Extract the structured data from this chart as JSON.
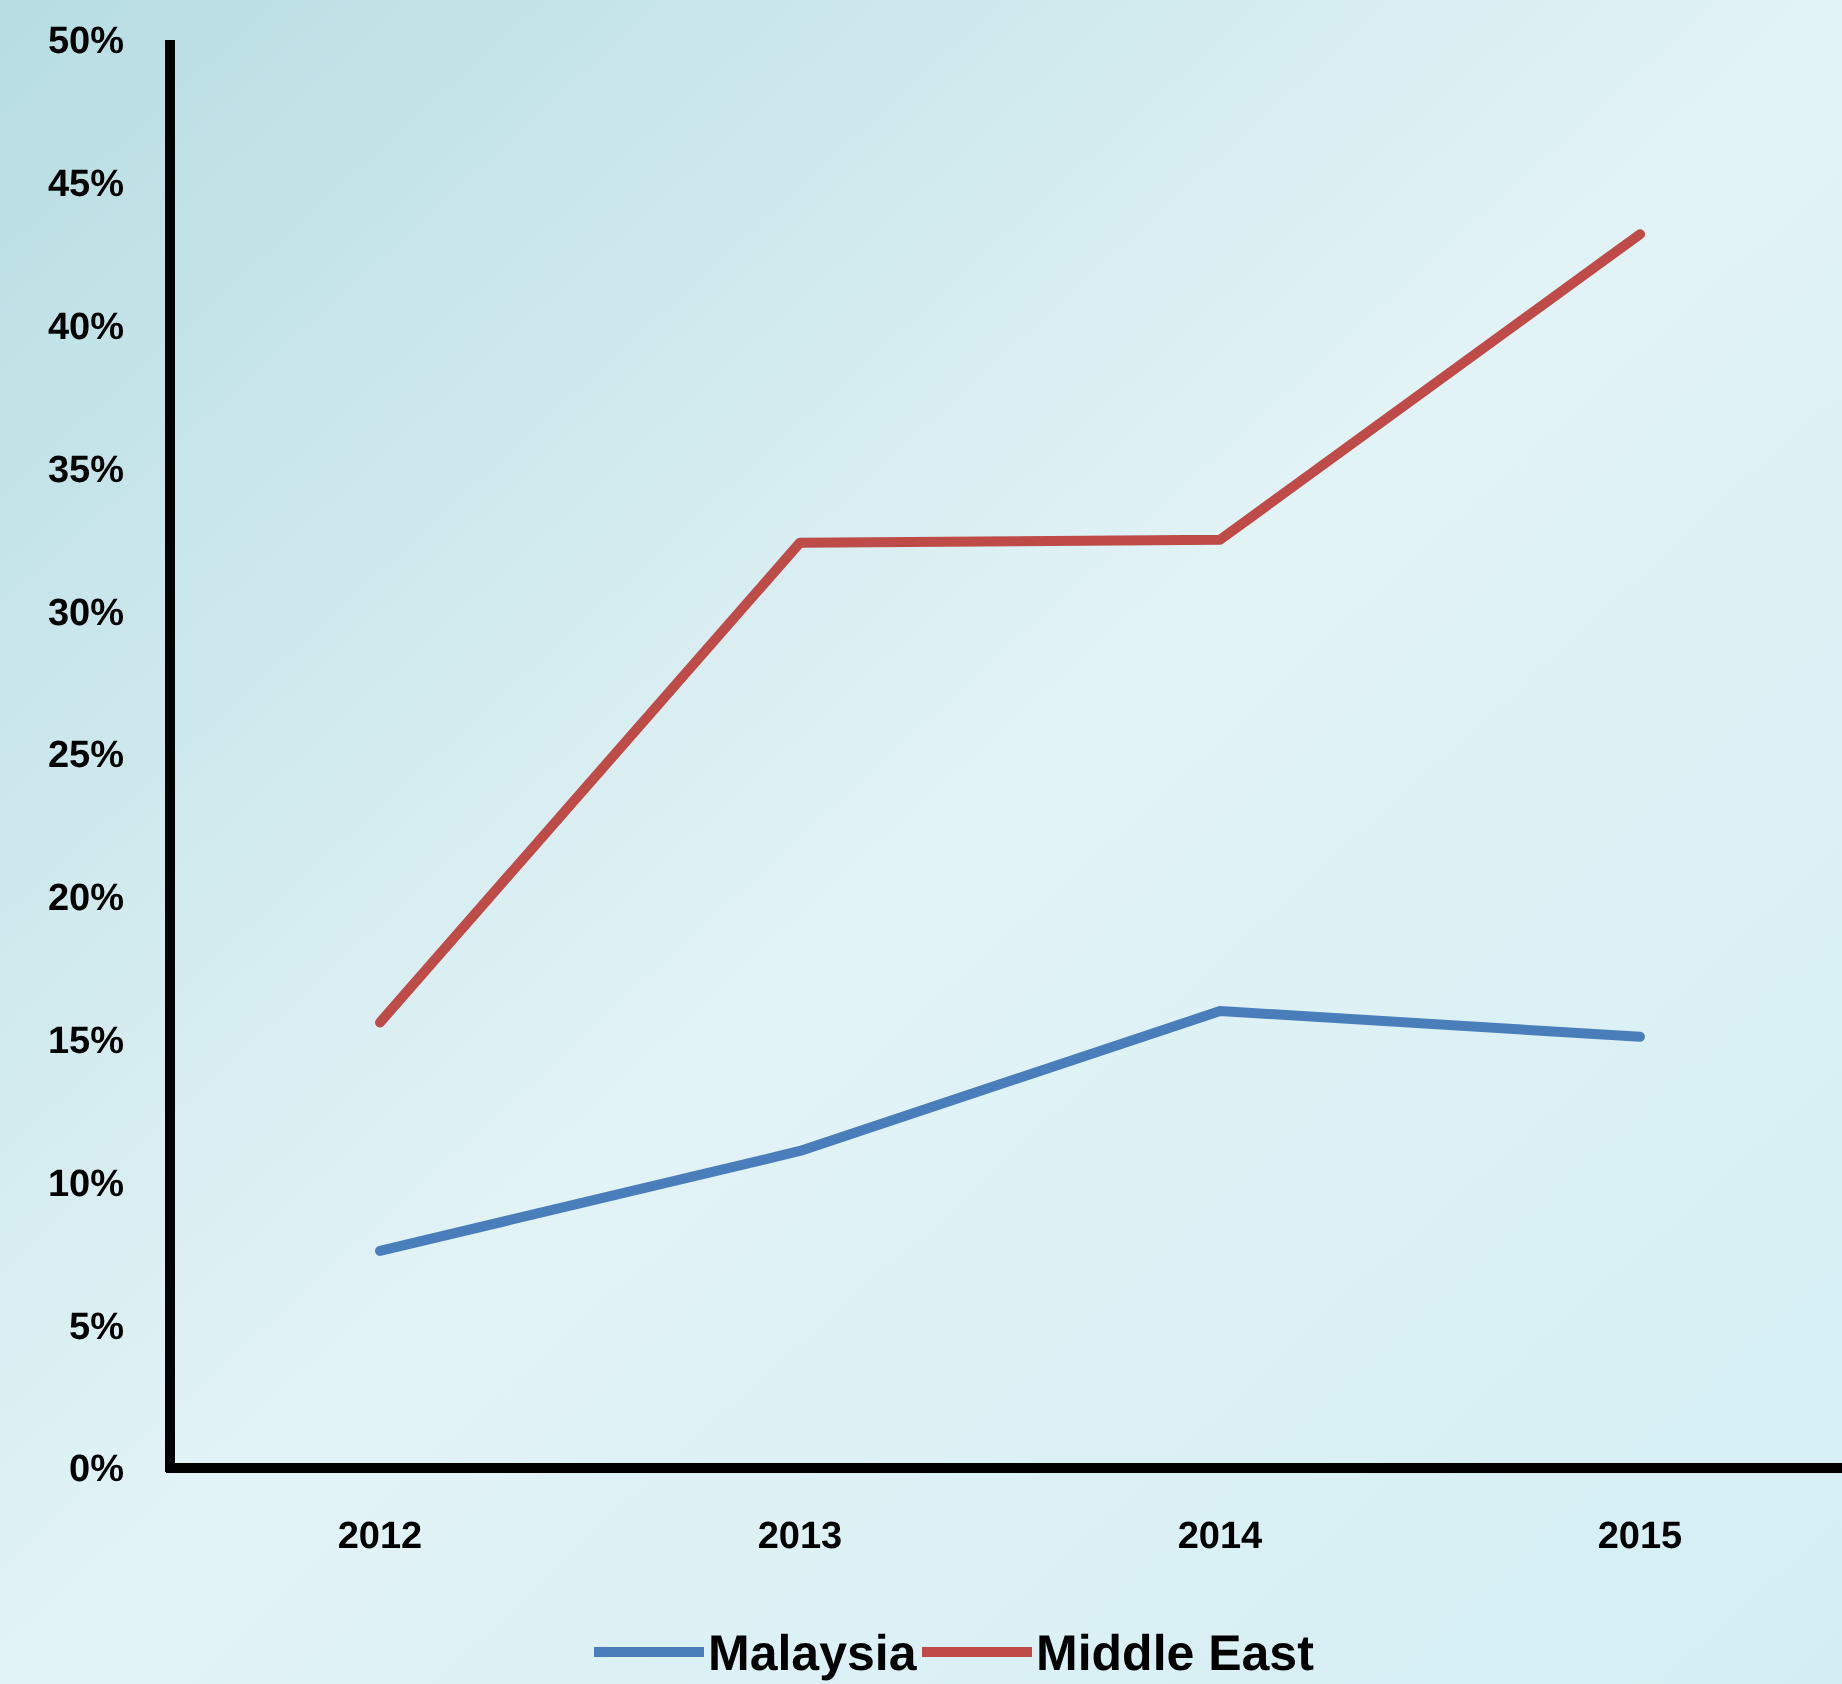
{
  "chart_data": {
    "type": "line",
    "categories": [
      "2012",
      "2013",
      "2014",
      "2015"
    ],
    "series": [
      {
        "name": "Malaysia",
        "color": "#4a7ebb",
        "values": [
          7.6,
          11.1,
          16.0,
          15.1
        ]
      },
      {
        "name": "Middle East",
        "color": "#be4b48",
        "values": [
          15.6,
          32.4,
          32.5,
          43.2
        ]
      }
    ],
    "ylim": [
      0,
      50
    ],
    "yticks": [
      {
        "value": 0,
        "label": "0%"
      },
      {
        "value": 5,
        "label": "5%"
      },
      {
        "value": 10,
        "label": "10%"
      },
      {
        "value": 15,
        "label": "15%"
      },
      {
        "value": 20,
        "label": "20%"
      },
      {
        "value": 25,
        "label": "25%"
      },
      {
        "value": 30,
        "label": "30%"
      },
      {
        "value": 35,
        "label": "35%"
      },
      {
        "value": 40,
        "label": "40%"
      },
      {
        "value": 45,
        "label": "45%"
      },
      {
        "value": 50,
        "label": "50%"
      }
    ],
    "grid": false,
    "legend": "bottom",
    "marker": "none",
    "line_style": "solid"
  }
}
